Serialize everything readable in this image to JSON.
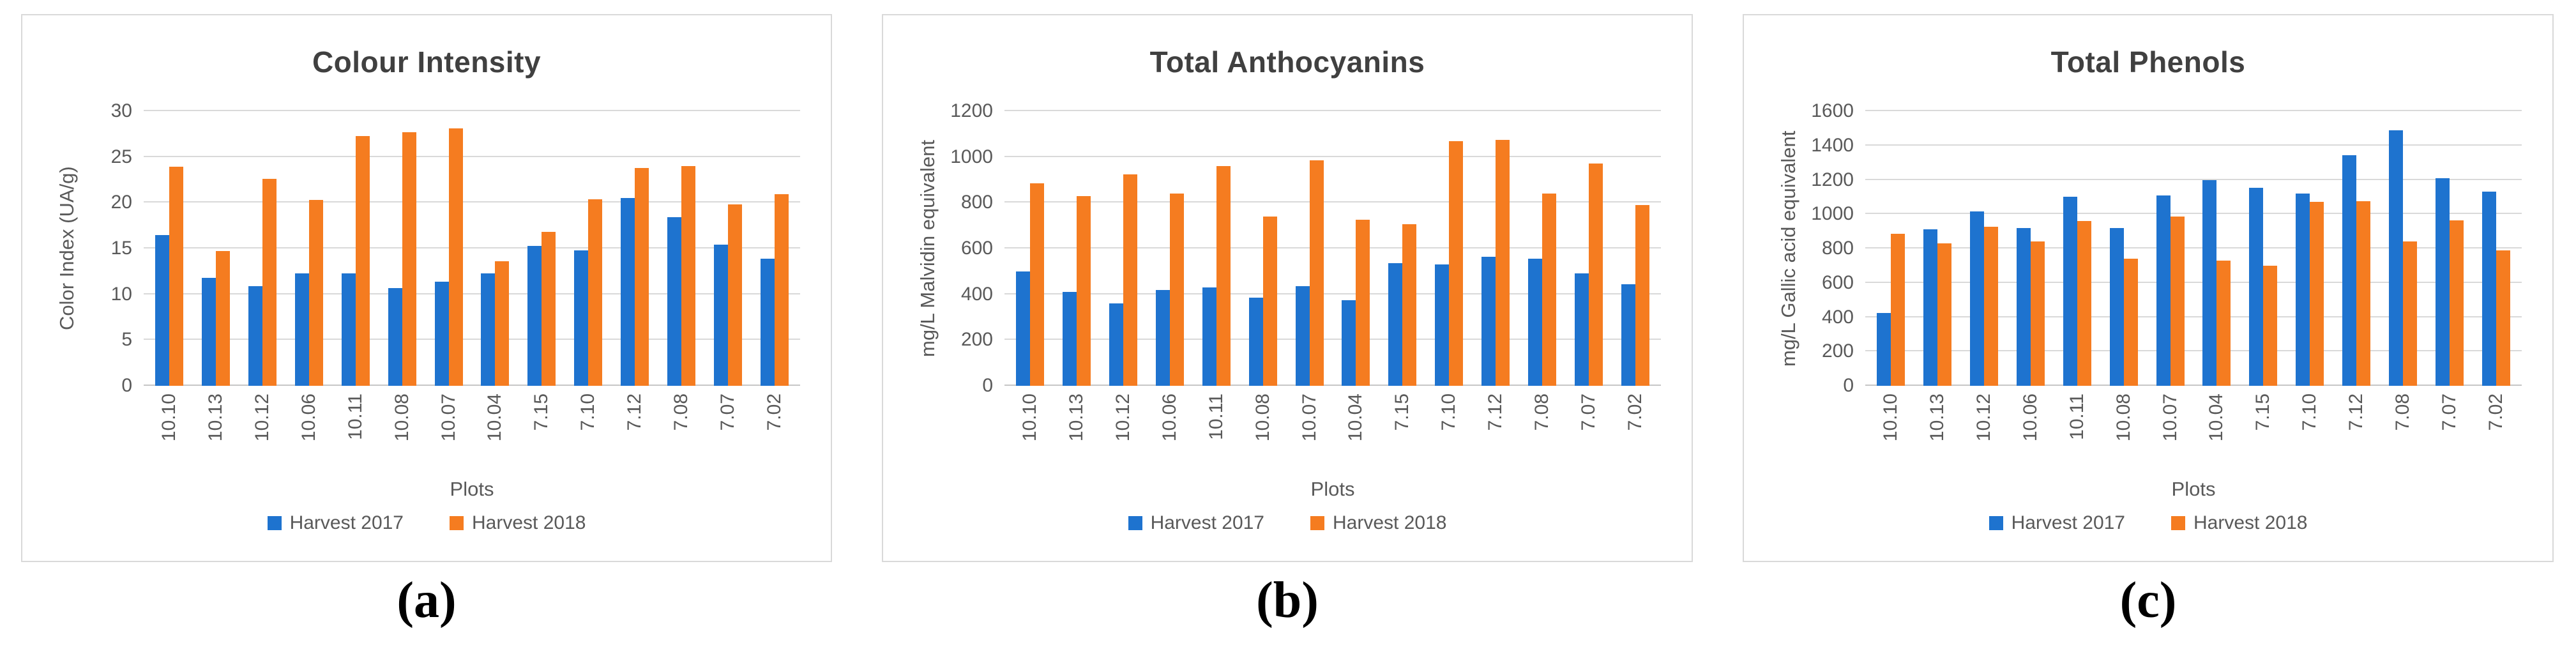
{
  "figure": {
    "xlabel": "Plots",
    "legend": [
      "Harvest 2017",
      "Harvest 2018"
    ],
    "colors": {
      "harvest_2017": "#1e73cf",
      "harvest_2018": "#f57c20"
    }
  },
  "chart_data": [
    {
      "type": "bar",
      "title": "Colour Intensity",
      "xlabel": "Plots",
      "ylabel": "Color Index (UA/g)",
      "ylim": [
        0,
        30
      ],
      "ytick_step": 5,
      "grid": true,
      "legend_position": "bottom",
      "caption": "(a)",
      "categories": [
        "10.10",
        "10.13",
        "10.12",
        "10.06",
        "10.11",
        "10.08",
        "10.07",
        "10.04",
        "7.15",
        "7.10",
        "7.12",
        "7.08",
        "7.07",
        "7.02"
      ],
      "series": [
        {
          "name": "Harvest 2017",
          "color": "#1e73cf",
          "values": [
            16.5,
            11.8,
            10.9,
            12.3,
            12.3,
            10.7,
            11.4,
            12.3,
            15.3,
            14.8,
            20.5,
            18.4,
            15.4,
            13.9
          ]
        },
        {
          "name": "Harvest 2018",
          "color": "#f57c20",
          "values": [
            23.9,
            14.7,
            22.6,
            20.3,
            27.3,
            27.7,
            28.1,
            13.6,
            16.8,
            20.4,
            23.8,
            24.0,
            19.8,
            20.9
          ]
        }
      ]
    },
    {
      "type": "bar",
      "title": "Total Anthocyanins",
      "xlabel": "Plots",
      "ylabel": "mg/L Malvidin equivalent",
      "ylim": [
        0,
        1200
      ],
      "ytick_step": 200,
      "grid": true,
      "legend_position": "bottom",
      "caption": "(b)",
      "categories": [
        "10.10",
        "10.13",
        "10.12",
        "10.06",
        "10.11",
        "10.08",
        "10.07",
        "10.04",
        "7.15",
        "7.10",
        "7.12",
        "7.08",
        "7.07",
        "7.02"
      ],
      "series": [
        {
          "name": "Harvest 2017",
          "color": "#1e73cf",
          "values": [
            500,
            410,
            360,
            420,
            430,
            385,
            435,
            375,
            535,
            530,
            565,
            555,
            490,
            445
          ]
        },
        {
          "name": "Harvest 2018",
          "color": "#f57c20",
          "values": [
            885,
            830,
            925,
            840,
            960,
            740,
            985,
            725,
            705,
            1070,
            1075,
            840,
            970,
            790
          ]
        }
      ]
    },
    {
      "type": "bar",
      "title": "Total Phenols",
      "xlabel": "Plots",
      "ylabel": "mg/L Gallic acid equivalent",
      "ylim": [
        0,
        1600
      ],
      "ytick_step": 200,
      "grid": true,
      "legend_position": "bottom",
      "caption": "(c)",
      "categories": [
        "10.10",
        "10.13",
        "10.12",
        "10.06",
        "10.11",
        "10.08",
        "10.07",
        "10.04",
        "7.15",
        "7.10",
        "7.12",
        "7.08",
        "7.07",
        "7.02"
      ],
      "series": [
        {
          "name": "Harvest 2017",
          "color": "#1e73cf",
          "values": [
            425,
            910,
            1015,
            920,
            1100,
            920,
            1110,
            1200,
            1155,
            1120,
            1345,
            1490,
            1210,
            1130
          ]
        },
        {
          "name": "Harvest 2018",
          "color": "#f57c20",
          "values": [
            885,
            830,
            925,
            840,
            960,
            740,
            985,
            730,
            700,
            1070,
            1075,
            840,
            965,
            790
          ]
        }
      ]
    }
  ]
}
